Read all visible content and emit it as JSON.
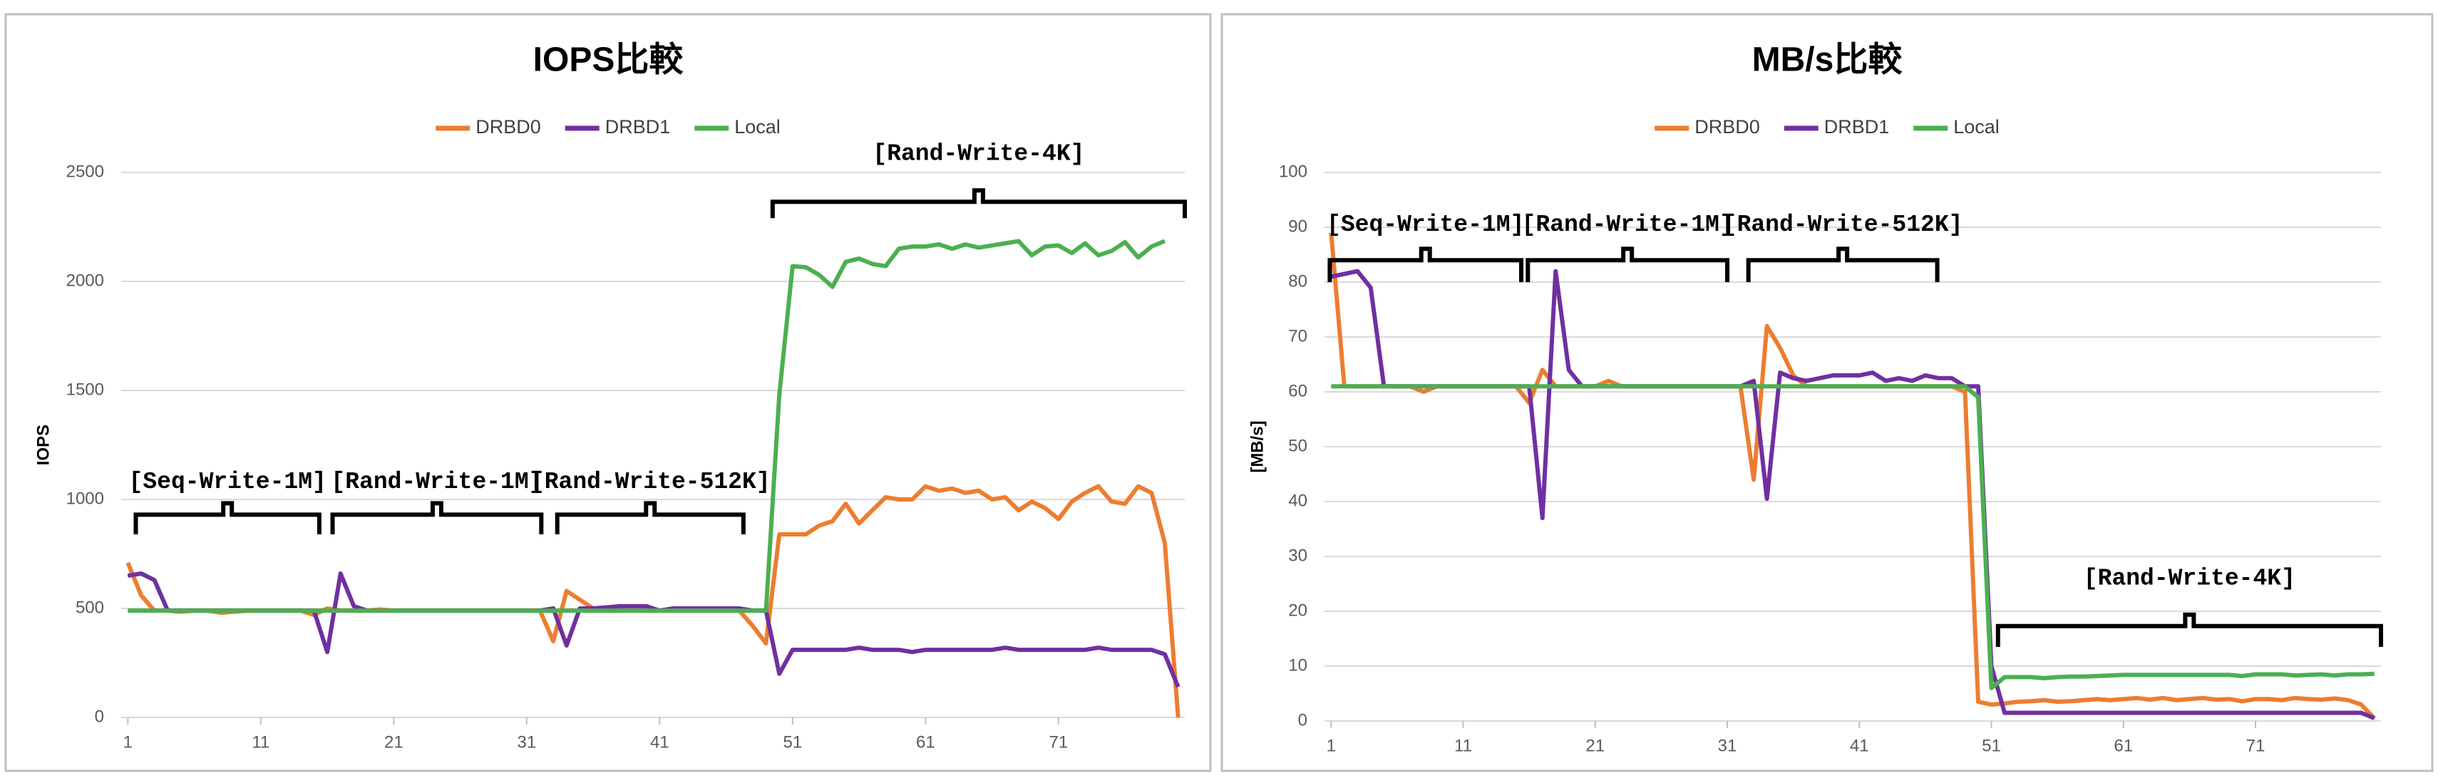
{
  "chart_data": [
    {
      "type": "line",
      "title": "IOPS比較",
      "y_label": "IOPS",
      "x": [
        1,
        2,
        3,
        4,
        5,
        6,
        7,
        8,
        9,
        10,
        11,
        12,
        13,
        14,
        15,
        16,
        17,
        18,
        19,
        20,
        21,
        22,
        23,
        24,
        25,
        26,
        27,
        28,
        29,
        30,
        31,
        32,
        33,
        34,
        35,
        36,
        37,
        38,
        39,
        40,
        41,
        42,
        43,
        44,
        45,
        46,
        47,
        48,
        49,
        50,
        51,
        52,
        53,
        54,
        55,
        56,
        57,
        58,
        59,
        60,
        61,
        62,
        63,
        64,
        65,
        66,
        67,
        68,
        69,
        70,
        71,
        72,
        73,
        74,
        75,
        76,
        77,
        78,
        79,
        80
      ],
      "xlim": [
        0.5,
        80.5
      ],
      "xticks": [
        1,
        11,
        21,
        31,
        41,
        51,
        61,
        71
      ],
      "ylim": [
        0,
        2500
      ],
      "yticks": [
        0,
        500,
        1000,
        1500,
        2000,
        2500
      ],
      "grid": true,
      "legend": "top",
      "series": [
        {
          "name": "DRBD0",
          "color": "#ed7d31",
          "values": [
            710,
            560,
            490,
            490,
            485,
            490,
            490,
            480,
            485,
            490,
            490,
            490,
            490,
            490,
            470,
            500,
            490,
            490,
            490,
            495,
            490,
            490,
            490,
            490,
            490,
            490,
            490,
            490,
            490,
            490,
            490,
            490,
            350,
            580,
            540,
            500,
            490,
            490,
            490,
            490,
            490,
            490,
            490,
            490,
            490,
            490,
            490,
            420,
            340,
            840,
            840,
            840,
            880,
            900,
            980,
            890,
            950,
            1010,
            1000,
            1000,
            1060,
            1040,
            1050,
            1030,
            1040,
            1000,
            1010,
            950,
            990,
            960,
            910,
            990,
            1030,
            1060,
            990,
            980,
            1060,
            1030,
            800,
            0
          ]
        },
        {
          "name": "DRBD1",
          "color": "#7030a0",
          "values": [
            650,
            660,
            630,
            490,
            490,
            490,
            490,
            490,
            490,
            490,
            490,
            490,
            490,
            490,
            490,
            300,
            660,
            510,
            490,
            490,
            490,
            490,
            490,
            490,
            490,
            490,
            490,
            490,
            490,
            490,
            490,
            490,
            500,
            330,
            500,
            500,
            505,
            510,
            510,
            510,
            490,
            500,
            500,
            500,
            500,
            500,
            500,
            490,
            490,
            200,
            310,
            310,
            310,
            310,
            310,
            320,
            310,
            310,
            310,
            300,
            310,
            310,
            310,
            310,
            310,
            310,
            320,
            310,
            310,
            310,
            310,
            310,
            310,
            320,
            310,
            310,
            310,
            310,
            290,
            140
          ]
        },
        {
          "name": "Local",
          "color": "#4caf50",
          "values": [
            490,
            490,
            490,
            490,
            490,
            490,
            490,
            490,
            490,
            490,
            490,
            490,
            490,
            490,
            490,
            490,
            490,
            490,
            490,
            490,
            490,
            490,
            490,
            490,
            490,
            490,
            490,
            490,
            490,
            490,
            490,
            490,
            490,
            490,
            490,
            490,
            490,
            490,
            490,
            490,
            490,
            490,
            490,
            490,
            490,
            490,
            490,
            490,
            490,
            1480,
            2070,
            2065,
            2030,
            1975,
            2090,
            2105,
            2080,
            2070,
            2150,
            2160,
            2160,
            2170,
            2150,
            2170,
            2155,
            2165,
            2175,
            2185,
            2120,
            2160,
            2165,
            2130,
            2175,
            2120,
            2140,
            2180,
            2110,
            2160,
            2185,
            null
          ]
        }
      ],
      "annotations": [
        "[Seq-Write-1M]",
        "[Rand-Write-1M]",
        "[Rand-Write-512K]",
        "[Rand-Write-4K]"
      ]
    },
    {
      "type": "line",
      "title": "MB/s比較",
      "y_label": "[MB/s]",
      "x": [
        1,
        2,
        3,
        4,
        5,
        6,
        7,
        8,
        9,
        10,
        11,
        12,
        13,
        14,
        15,
        16,
        17,
        18,
        19,
        20,
        21,
        22,
        23,
        24,
        25,
        26,
        27,
        28,
        29,
        30,
        31,
        32,
        33,
        34,
        35,
        36,
        37,
        38,
        39,
        40,
        41,
        42,
        43,
        44,
        45,
        46,
        47,
        48,
        49,
        50,
        51,
        52,
        53,
        54,
        55,
        56,
        57,
        58,
        59,
        60,
        61,
        62,
        63,
        64,
        65,
        66,
        67,
        68,
        69,
        70,
        71,
        72,
        73,
        74,
        75,
        76,
        77,
        78,
        79,
        80
      ],
      "xlim": [
        0.5,
        80.5
      ],
      "xticks": [
        1,
        11,
        21,
        31,
        41,
        51,
        61,
        71
      ],
      "ylim": [
        0,
        100
      ],
      "yticks": [
        0,
        10,
        20,
        30,
        40,
        50,
        60,
        70,
        80,
        90,
        100
      ],
      "grid": true,
      "legend": "top",
      "series": [
        {
          "name": "DRBD0",
          "color": "#ed7d31",
          "values": [
            89,
            61,
            61,
            61,
            61,
            61,
            61,
            60,
            61,
            61,
            61,
            61,
            61,
            61,
            61,
            58,
            64,
            61,
            61,
            61,
            61,
            62,
            61,
            61,
            61,
            61,
            61,
            61,
            61,
            61,
            61,
            61,
            44,
            72,
            68,
            63,
            61,
            61,
            61,
            61,
            61,
            61,
            61,
            61,
            61,
            61,
            61,
            61,
            60,
            3.5,
            3,
            3.2,
            3.5,
            3.6,
            3.8,
            3.5,
            3.6,
            3.8,
            4,
            3.8,
            4,
            4.2,
            3.9,
            4.2,
            3.8,
            4,
            4.2,
            3.9,
            4,
            3.6,
            4,
            4,
            3.8,
            4.2,
            4,
            3.9,
            4.1,
            3.8,
            3,
            0.5
          ]
        },
        {
          "name": "DRBD1",
          "color": "#7030a0",
          "values": [
            81,
            81.5,
            82,
            79,
            61,
            61,
            61,
            61,
            61,
            61,
            61,
            61,
            61,
            61,
            61,
            61,
            37,
            82,
            64,
            61,
            61,
            61,
            61,
            61,
            61,
            61,
            61,
            61,
            61,
            61,
            61,
            61,
            62,
            40.5,
            63.5,
            62.5,
            62,
            62.5,
            63,
            63,
            63,
            63.5,
            62,
            62.5,
            62,
            63,
            62.5,
            62.5,
            61,
            61,
            10,
            1.5,
            1.5,
            1.5,
            1.5,
            1.5,
            1.5,
            1.5,
            1.5,
            1.5,
            1.5,
            1.5,
            1.5,
            1.5,
            1.5,
            1.5,
            1.5,
            1.5,
            1.5,
            1.5,
            1.5,
            1.5,
            1.5,
            1.5,
            1.5,
            1.5,
            1.5,
            1.5,
            1.5,
            0.5
          ]
        },
        {
          "name": "Local",
          "color": "#4caf50",
          "values": [
            61,
            61,
            61,
            61,
            61,
            61,
            61,
            61,
            61,
            61,
            61,
            61,
            61,
            61,
            61,
            61,
            61,
            61,
            61,
            61,
            61,
            61,
            61,
            61,
            61,
            61,
            61,
            61,
            61,
            61,
            61,
            61,
            61,
            61,
            61,
            61,
            61,
            61,
            61,
            61,
            61,
            61,
            61,
            61,
            61,
            61,
            61,
            61,
            61,
            59,
            6,
            8,
            8,
            8,
            7.8,
            8,
            8.1,
            8.1,
            8.2,
            8.3,
            8.4,
            8.4,
            8.4,
            8.4,
            8.4,
            8.4,
            8.4,
            8.4,
            8.4,
            8.2,
            8.5,
            8.5,
            8.5,
            8.3,
            8.4,
            8.5,
            8.3,
            8.5,
            8.5,
            8.6
          ]
        }
      ],
      "annotations": [
        "[Seq-Write-1M]",
        "[Rand-Write-1M]",
        "[Rand-Write-512K]",
        "[Rand-Write-4K]"
      ]
    }
  ]
}
